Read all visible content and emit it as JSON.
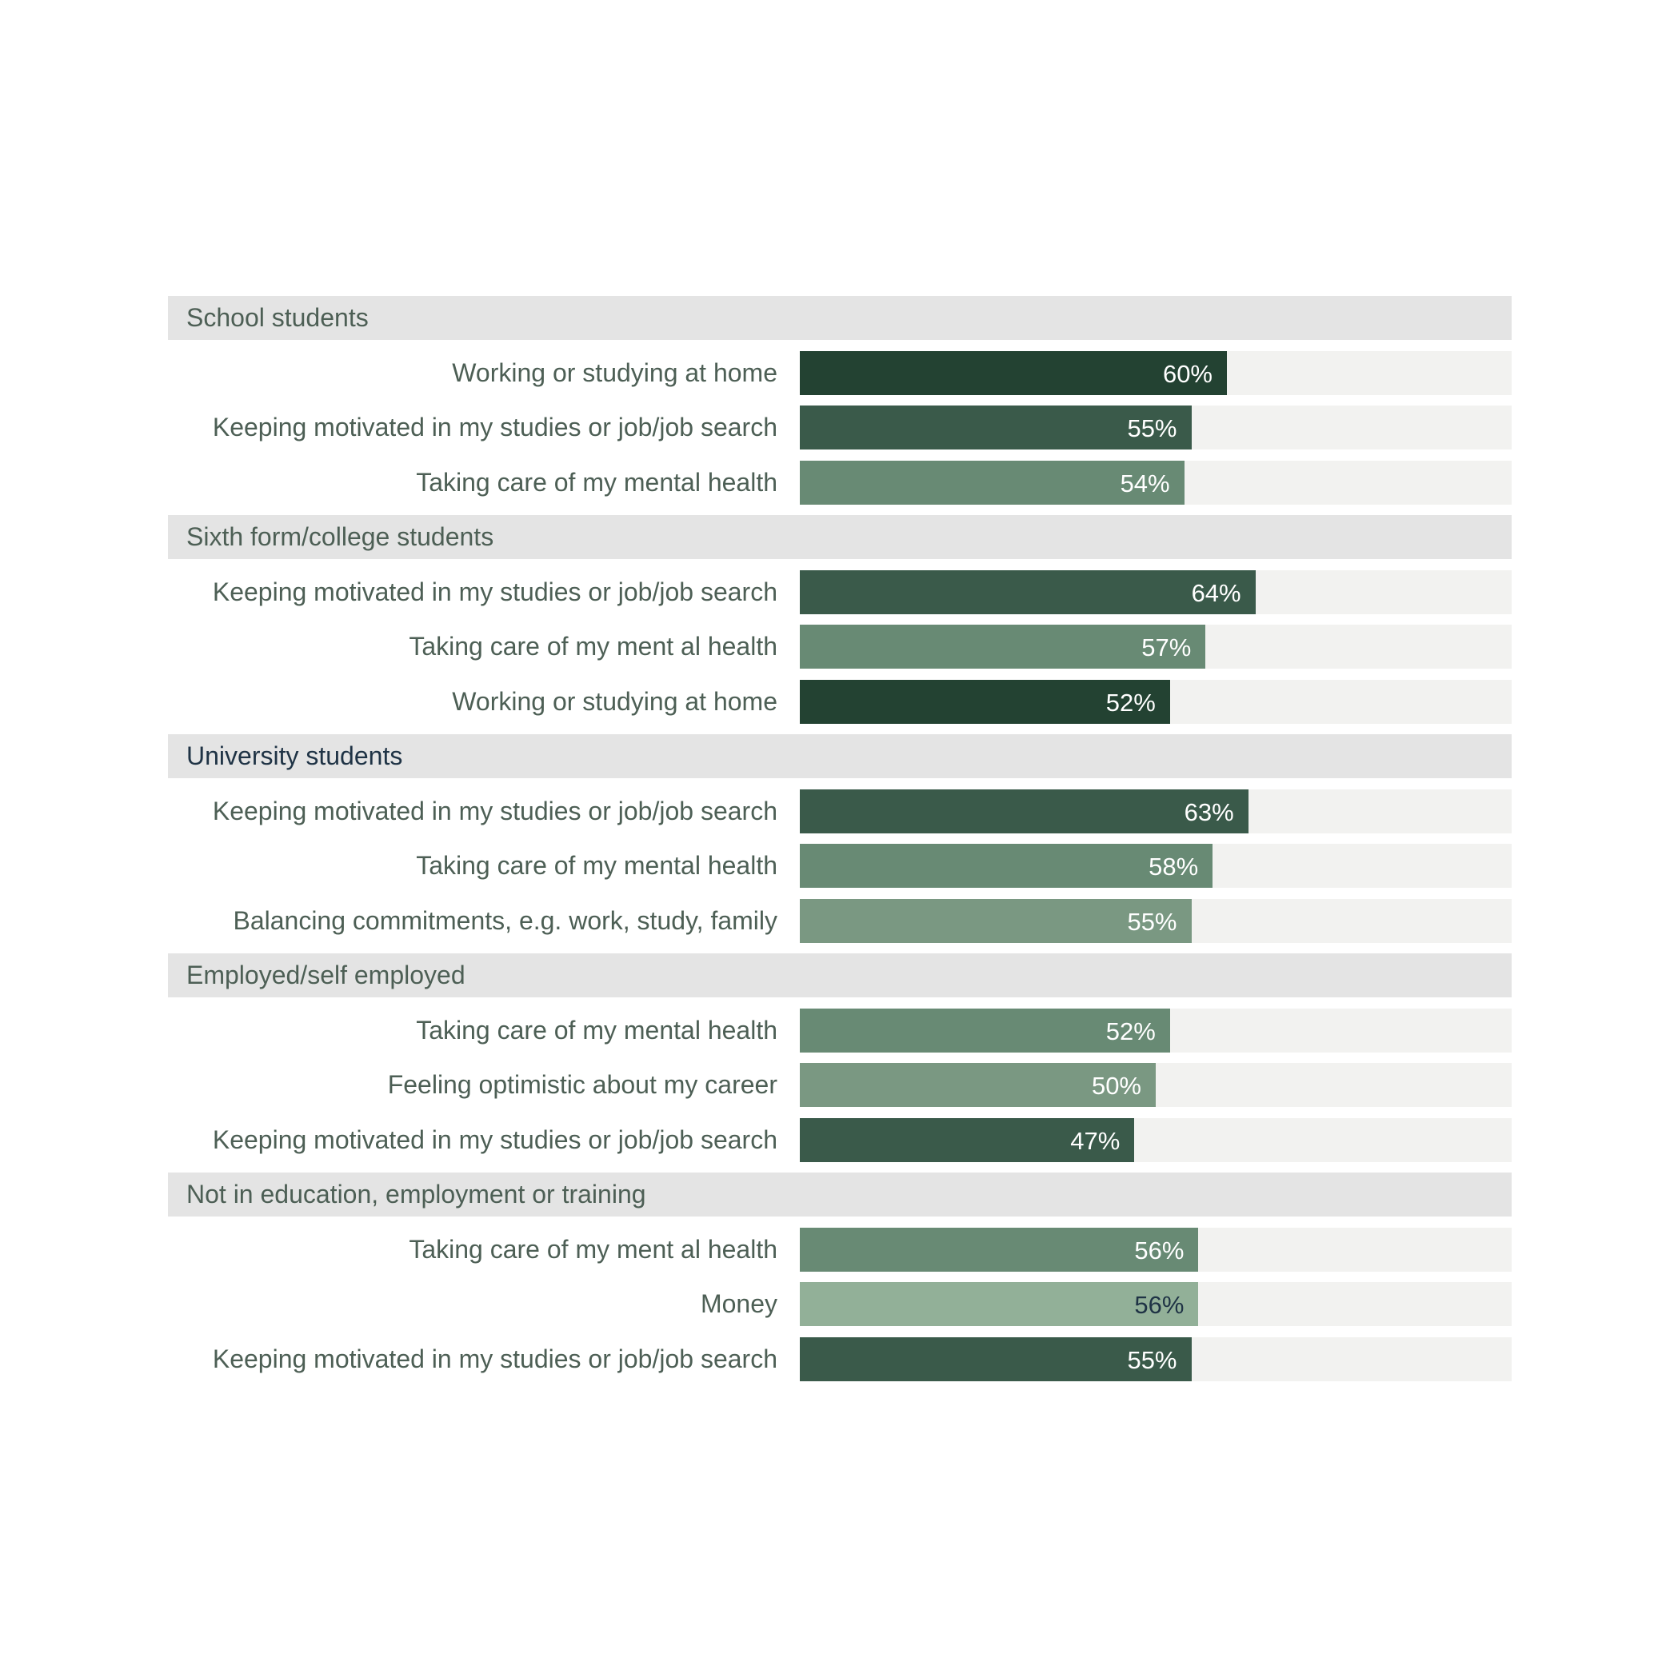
{
  "chart_data": {
    "type": "bar",
    "orientation": "horizontal",
    "xlim": [
      0,
      100
    ],
    "value_suffix": "%",
    "colors": {
      "working_at_home": "#234232",
      "keeping_motivated": "#3a5a4a",
      "mental_health": "#688a74",
      "balancing_commitments": "#7a9882",
      "feeling_optimistic": "#7a9882",
      "money": "#92b098",
      "group_header_bg": "#e4e4e4",
      "track_bg": "#f2f2f0",
      "label_text": "#4d5f55"
    },
    "groups": [
      {
        "name": "School students",
        "items": [
          {
            "label": "Working or studying at home",
            "value": 60,
            "value_label": "60%",
            "color": "#234232",
            "value_color": "#ffffff"
          },
          {
            "label": "Keeping motivated in my studies or job/job search",
            "value": 55,
            "value_label": "55%",
            "color": "#3a5a4a",
            "value_color": "#ffffff"
          },
          {
            "label": "Taking care of my mental health",
            "value": 54,
            "value_label": "54%",
            "color": "#688a74",
            "value_color": "#ffffff"
          }
        ]
      },
      {
        "name": "Sixth form/college students",
        "items": [
          {
            "label": "Keeping motivated in my studies or job/job search",
            "value": 64,
            "value_label": "64%",
            "color": "#3a5a4a",
            "value_color": "#ffffff"
          },
          {
            "label": "Taking care of my ment al health",
            "value": 57,
            "value_label": "57%",
            "color": "#688a74",
            "value_color": "#ffffff"
          },
          {
            "label": "Working or studying at home",
            "value": 52,
            "value_label": "52%",
            "color": "#234232",
            "value_color": "#ffffff"
          }
        ]
      },
      {
        "name": "University students",
        "name_color": "#1f3345",
        "items": [
          {
            "label": "Keeping motivated in my studies or job/job search",
            "value": 63,
            "value_label": "63%",
            "color": "#3a5a4a",
            "value_color": "#ffffff"
          },
          {
            "label": "Taking care of my mental health",
            "value": 58,
            "value_label": "58%",
            "color": "#688a74",
            "value_color": "#ffffff"
          },
          {
            "label": "Balancing commitments, e.g. work, study, family",
            "value": 55,
            "value_label": "55%",
            "color": "#7a9882",
            "value_color": "#ffffff"
          }
        ]
      },
      {
        "name": "Employed/self employed",
        "items": [
          {
            "label": "Taking care of my mental health",
            "value": 52,
            "value_label": "52%",
            "color": "#688a74",
            "value_color": "#ffffff"
          },
          {
            "label": "Feeling optimistic about my career",
            "value": 50,
            "value_label": "50%",
            "color": "#7a9882",
            "value_color": "#ffffff"
          },
          {
            "label": "Keeping motivated in my studies or job/job search",
            "value": 47,
            "value_label": "47%",
            "color": "#3a5a4a",
            "value_color": "#ffffff"
          }
        ]
      },
      {
        "name": "Not in education, employment or training",
        "items": [
          {
            "label": "Taking care of my ment al health",
            "value": 56,
            "value_label": "56%",
            "color": "#688a74",
            "value_color": "#ffffff"
          },
          {
            "label": "Money",
            "value": 56,
            "value_label": "56%",
            "color": "#92b098",
            "value_color": "#1f3345"
          },
          {
            "label": "Keeping motivated in my studies or job/job search",
            "value": 55,
            "value_label": "55%",
            "color": "#3a5a4a",
            "value_color": "#ffffff"
          }
        ]
      }
    ]
  }
}
